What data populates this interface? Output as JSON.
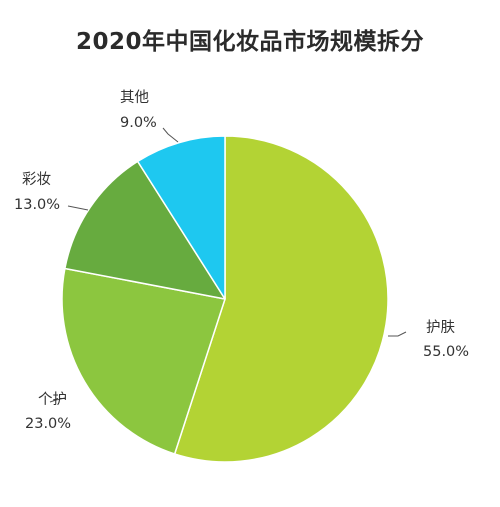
{
  "chart_data": {
    "type": "pie",
    "title": "2020年中国化妆品市场规模拆分",
    "categories": [
      "护肤",
      "个护",
      "彩妆",
      "其他"
    ],
    "values": [
      55.0,
      23.0,
      13.0,
      9.0
    ],
    "value_labels": [
      "55.0%",
      "23.0%",
      "13.0%",
      "9.0%"
    ],
    "colors": [
      "#b3d334",
      "#8cc63f",
      "#67ab3f",
      "#1ec8f0"
    ],
    "start_angle": "12 o'clock",
    "direction": "clockwise",
    "legend": "none"
  }
}
